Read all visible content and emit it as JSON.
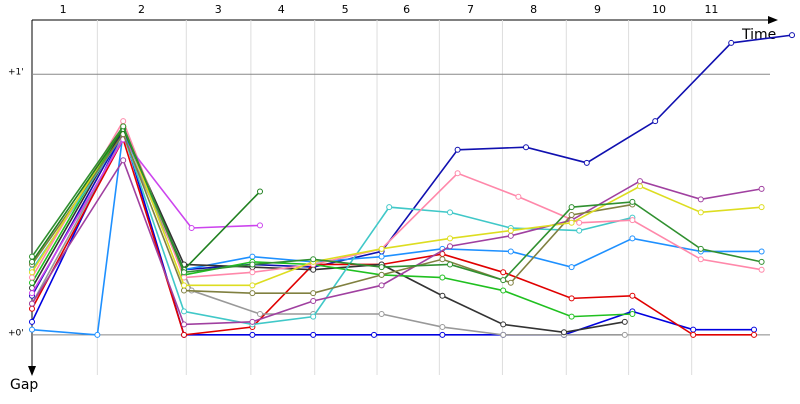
{
  "chart_data": {
    "type": "line",
    "x_label": "Time",
    "y_label": "Gap",
    "xlim": [
      0,
      100
    ],
    "ylim": [
      -0.154,
      1.208
    ],
    "yticks": [
      {
        "value": 0,
        "label": "+0'"
      },
      {
        "value": 1,
        "label": "+1'"
      }
    ],
    "xgrid": [
      8.6,
      20.3,
      28.8,
      37.2,
      45.4,
      53.6,
      61.9,
      70.3,
      78.5,
      86.8
    ],
    "laps": {
      "labels": [
        "1",
        "2",
        "3",
        "4",
        "5",
        "6",
        "7",
        "8",
        "9",
        "10",
        "11"
      ],
      "x": [
        4.1,
        14.4,
        24.5,
        32.8,
        41.2,
        49.3,
        57.7,
        66.0,
        74.4,
        82.5,
        89.4
      ]
    },
    "series": [
      {
        "color": "#1010b0",
        "x": [
          0,
          12,
          20,
          29,
          37,
          46,
          56,
          65,
          73,
          82,
          92,
          100
        ],
        "values": [
          0.15,
          0.78,
          0.25,
          0.27,
          0.26,
          0.32,
          0.71,
          0.72,
          0.66,
          0.82,
          1.12,
          1.15
        ]
      },
      {
        "color": "#0000e0",
        "x": [
          0,
          12,
          20,
          29,
          37,
          45,
          54,
          62,
          70,
          79,
          87,
          95
        ],
        "values": [
          0.05,
          0.78,
          0.0,
          0.0,
          0.0,
          0.0,
          0.0,
          0.0,
          0.0,
          0.09,
          0.02,
          0.02
        ]
      },
      {
        "color": "#1e90ff",
        "x": [
          0,
          8.6,
          12,
          20,
          29,
          37,
          46,
          54,
          63,
          71,
          79,
          88,
          96
        ],
        "values": [
          0.02,
          0,
          0.78,
          0.25,
          0.3,
          0.28,
          0.3,
          0.33,
          0.32,
          0.26,
          0.37,
          0.32,
          0.32
        ]
      },
      {
        "color": "#e00000",
        "x": [
          0,
          12,
          20,
          29,
          37,
          46,
          54,
          62,
          71,
          79,
          87,
          95
        ],
        "values": [
          0.1,
          0.75,
          0.0,
          0.03,
          0.27,
          0.27,
          0.31,
          0.24,
          0.14,
          0.15,
          0.0,
          0.0
        ]
      },
      {
        "color": "#999999",
        "x": [
          0,
          12,
          21,
          30,
          37,
          46,
          54,
          62,
          70,
          78
        ],
        "values": [
          0.12,
          0.76,
          0.17,
          0.08,
          0.08,
          0.08,
          0.03,
          0,
          0,
          0
        ]
      },
      {
        "color": "#333333",
        "x": [
          0,
          12,
          20,
          29,
          37,
          46,
          54,
          62,
          70,
          78
        ],
        "values": [
          0.18,
          0.79,
          0.27,
          0.26,
          0.25,
          0.27,
          0.15,
          0.04,
          0.01,
          0.05
        ]
      },
      {
        "color": "#20c020",
        "x": [
          0,
          12,
          20,
          29,
          37,
          46,
          54,
          62,
          71,
          79
        ],
        "values": [
          0.2,
          0.8,
          0.23,
          0.28,
          0.27,
          0.23,
          0.22,
          0.17,
          0.07,
          0.08
        ]
      },
      {
        "color": "#40c8c8",
        "x": [
          0,
          12,
          20,
          29,
          37,
          47,
          55,
          63,
          72,
          79
        ],
        "values": [
          0.25,
          0.77,
          0.09,
          0.04,
          0.07,
          0.49,
          0.47,
          0.41,
          0.4,
          0.45
        ]
      },
      {
        "color": "#ff88aa",
        "x": [
          0,
          12,
          20,
          29,
          37,
          46,
          56,
          64,
          72,
          79,
          88,
          96
        ],
        "values": [
          0.22,
          0.82,
          0.22,
          0.24,
          0.27,
          0.33,
          0.62,
          0.53,
          0.43,
          0.44,
          0.29,
          0.25
        ]
      },
      {
        "color": "#a040a0",
        "x": [
          0,
          12,
          20,
          29,
          37,
          46,
          55,
          63,
          71,
          80,
          88,
          96
        ],
        "values": [
          0.12,
          0.67,
          0.04,
          0.05,
          0.13,
          0.19,
          0.34,
          0.38,
          0.44,
          0.59,
          0.52,
          0.56
        ]
      },
      {
        "color": "#cc44ee",
        "x": [
          0,
          12,
          21,
          30
        ],
        "values": [
          0.16,
          0.75,
          0.41,
          0.42
        ]
      },
      {
        "color": "#808040",
        "x": [
          0,
          12,
          20,
          29,
          37,
          46,
          54,
          63,
          71,
          79
        ],
        "values": [
          0.27,
          0.77,
          0.17,
          0.16,
          0.16,
          0.23,
          0.29,
          0.2,
          0.46,
          0.5
        ]
      },
      {
        "color": "#dddd20",
        "x": [
          0,
          12,
          20,
          29,
          37,
          46,
          55,
          63,
          71,
          80,
          88,
          96
        ],
        "values": [
          0.24,
          0.8,
          0.19,
          0.19,
          0.28,
          0.33,
          0.37,
          0.4,
          0.43,
          0.57,
          0.47,
          0.49
        ]
      },
      {
        "color": "#208020",
        "x": [
          0,
          12,
          20,
          30
        ],
        "values": [
          0.28,
          0.79,
          0.25,
          0.55
        ]
      },
      {
        "color": "#309030",
        "x": [
          0,
          12,
          20,
          29,
          37,
          46,
          55,
          62,
          71,
          79,
          88,
          96
        ],
        "values": [
          0.3,
          0.8,
          0.24,
          0.27,
          0.29,
          0.26,
          0.27,
          0.21,
          0.49,
          0.51,
          0.33,
          0.28
        ]
      }
    ]
  }
}
